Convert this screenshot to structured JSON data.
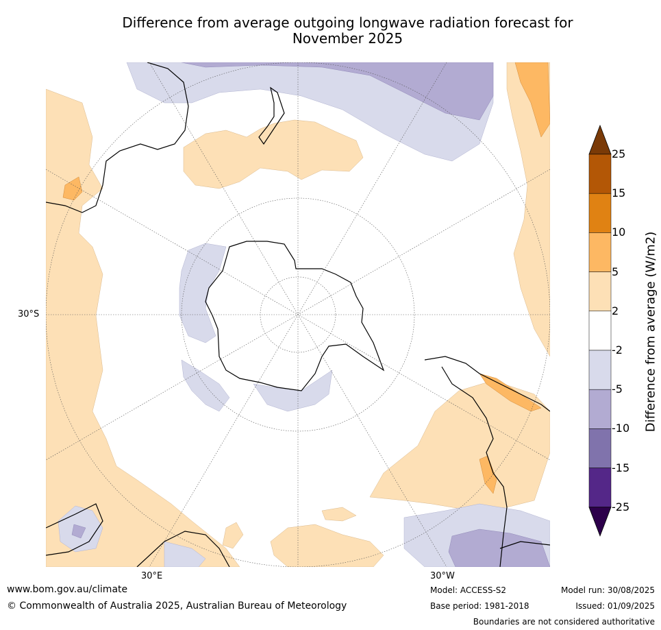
{
  "title": {
    "line1": "Difference from average outgoing longwave radiation forecast for",
    "line2": "November 2025"
  },
  "map": {
    "projection": "south-polar-stereographic",
    "lat_label": "30°S",
    "lon_labels": [
      "30°E",
      "30°W"
    ]
  },
  "colorbar": {
    "title": "Difference from average (W/m2)",
    "ticks": [
      "25",
      "15",
      "10",
      "5",
      "2",
      "-2",
      "-5",
      "-10",
      "-15",
      "-25"
    ],
    "colors": [
      "#7a3a07",
      "#b35706",
      "#e08213",
      "#fdb863",
      "#fde0b6",
      "#ffffff",
      "#d8daeb",
      "#b2abd2",
      "#8073ac",
      "#542788",
      "#2d004b"
    ]
  },
  "footer": {
    "website": "www.bom.gov.au/climate",
    "copyright": "© Commonwealth of Australia 2025, Australian Bureau of Meteorology",
    "model": "Model: ACCESS-S2",
    "base_period": "Base period: 1981-2018",
    "model_run": "Model run: 30/08/2025",
    "issued": "Issued: 01/09/2025",
    "disclaimer": "Boundaries are not considered authoritative"
  }
}
